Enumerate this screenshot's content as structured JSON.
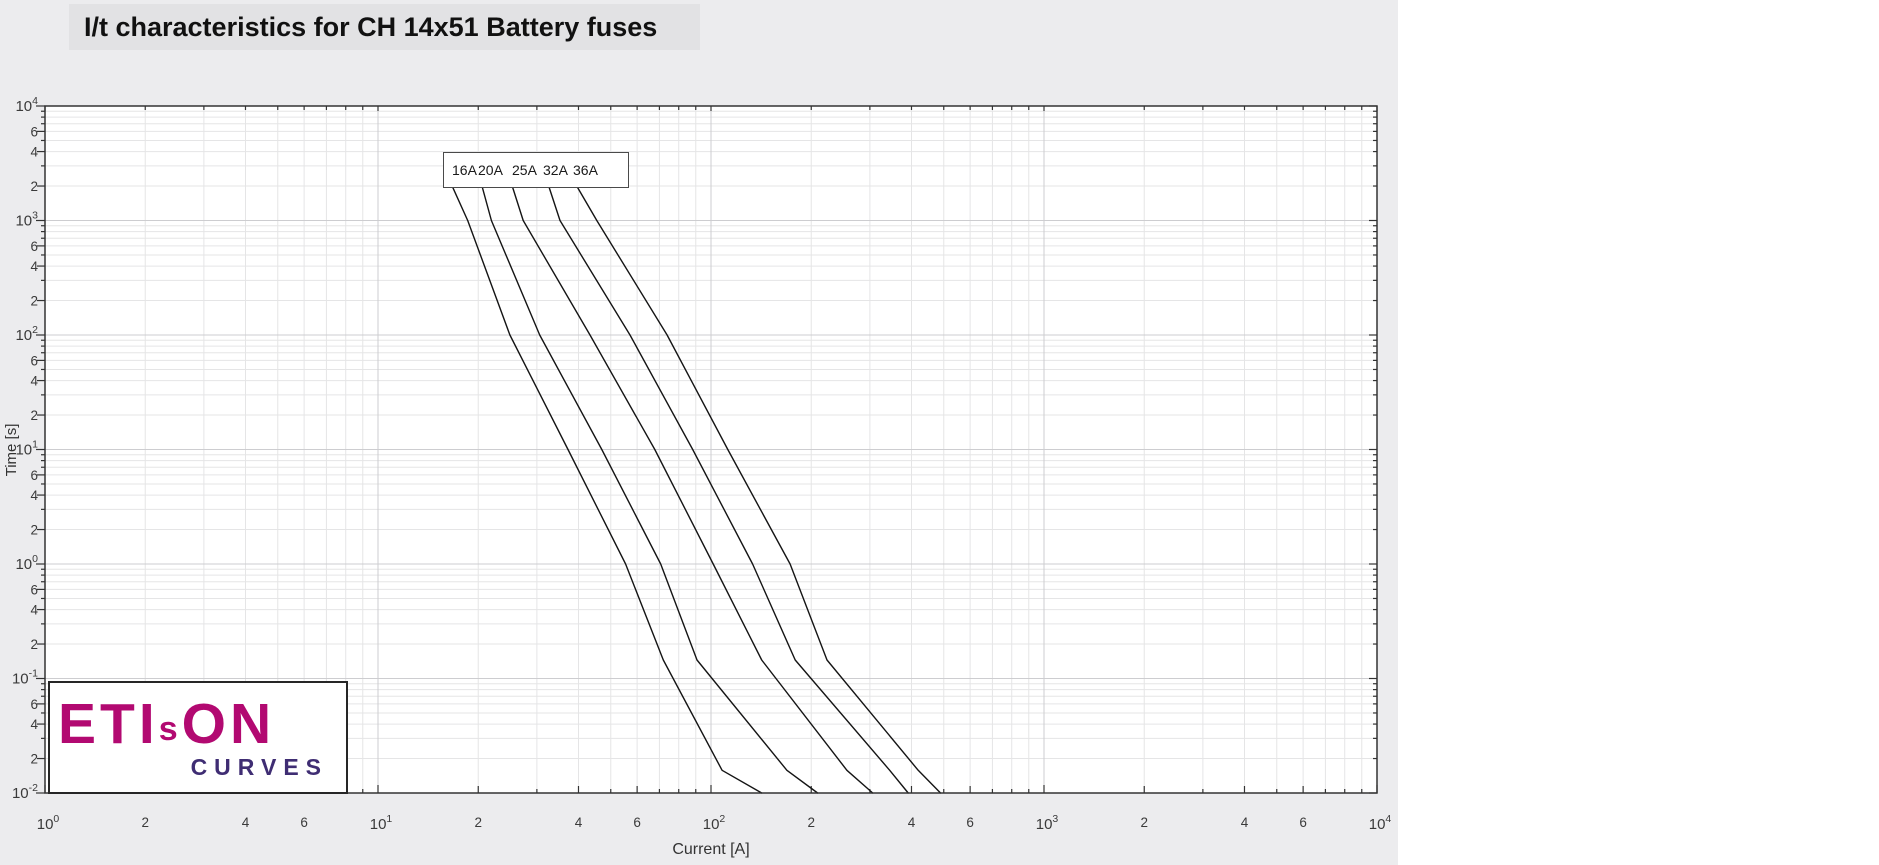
{
  "title": "I/t characteristics for CH 14x51 Battery fuses",
  "colors": {
    "page_bg": "#ECECEE",
    "title_bg": "#E2E2E4",
    "plot_bg": "#FFFFFF",
    "grid_minor": "#E5E5E6",
    "grid_major": "#CDCDD0",
    "axis": "#333333",
    "curve": "#141414",
    "logo_magenta": "#B20971",
    "logo_purple": "#3F2D73"
  },
  "chart_data": {
    "type": "line",
    "title": "I/t characteristics for CH 14x51 Battery fuses",
    "xlabel": "Current [A]",
    "ylabel": "Time [s]",
    "x_scale": "log",
    "y_scale": "log",
    "xlim": [
      1,
      10000
    ],
    "ylim": [
      0.01,
      10000
    ],
    "grid": "major+minor",
    "axes": {
      "x": {
        "label": "Current [A]",
        "min": 1,
        "max": 10000,
        "decade_exponents": [
          0,
          1,
          2,
          3,
          4
        ],
        "labeled_minors": [
          2,
          4,
          6
        ],
        "minor_gridlines": [
          2,
          3,
          4,
          5,
          6,
          7,
          8,
          9
        ]
      },
      "y": {
        "label": "Time [s]",
        "min": 0.01,
        "max": 10000,
        "decade_exponents": [
          4,
          3,
          2,
          1,
          0,
          -1,
          -2
        ],
        "labeled_minors": [
          2,
          4,
          6
        ],
        "minor_gridlines": [
          2,
          3,
          4,
          5,
          6,
          7,
          8,
          9
        ]
      }
    },
    "legend": {
      "position": "top-inside",
      "labels": [
        "16A",
        "20A",
        "25A",
        "32A",
        "36A"
      ]
    },
    "series_units": {
      "x": "current A",
      "y": "melting time s"
    },
    "series": [
      {
        "name": "16A",
        "points": [
          [
            16.8,
            1925
          ],
          [
            18.6,
            1000
          ],
          [
            24.9,
            100
          ],
          [
            37.2,
            10
          ],
          [
            55.4,
            1
          ],
          [
            71.9,
            0.145
          ],
          [
            108,
            0.0158
          ],
          [
            142,
            0.01
          ]
        ]
      },
      {
        "name": "20A",
        "points": [
          [
            20.6,
            1925
          ],
          [
            21.9,
            1000
          ],
          [
            30.6,
            100
          ],
          [
            47.0,
            10
          ],
          [
            70.6,
            1
          ],
          [
            90.8,
            0.145
          ],
          [
            169,
            0.0158
          ],
          [
            209,
            0.01
          ]
        ]
      },
      {
        "name": "25A",
        "points": [
          [
            25.4,
            1925
          ],
          [
            27.3,
            1000
          ],
          [
            43.3,
            100
          ],
          [
            67.8,
            10
          ],
          [
            101.5,
            1
          ],
          [
            142,
            0.145
          ],
          [
            256,
            0.0158
          ],
          [
            306,
            0.01
          ]
        ]
      },
      {
        "name": "32A",
        "points": [
          [
            32.7,
            1925
          ],
          [
            35.2,
            1000
          ],
          [
            57.1,
            100
          ],
          [
            88.1,
            10
          ],
          [
            133.3,
            1
          ],
          [
            179,
            0.145
          ],
          [
            344,
            0.0158
          ],
          [
            391,
            0.01
          ]
        ]
      },
      {
        "name": "36A",
        "points": [
          [
            39.8,
            1925
          ],
          [
            45.4,
            1000
          ],
          [
            73.8,
            100
          ],
          [
            112.3,
            10
          ],
          [
            172.8,
            1
          ],
          [
            223,
            0.145
          ],
          [
            419,
            0.0158
          ],
          [
            489,
            0.01
          ]
        ]
      }
    ]
  },
  "logo": {
    "eti": "ETI",
    "s_small": "s",
    "on": "ON",
    "subtitle": "CURVES"
  }
}
